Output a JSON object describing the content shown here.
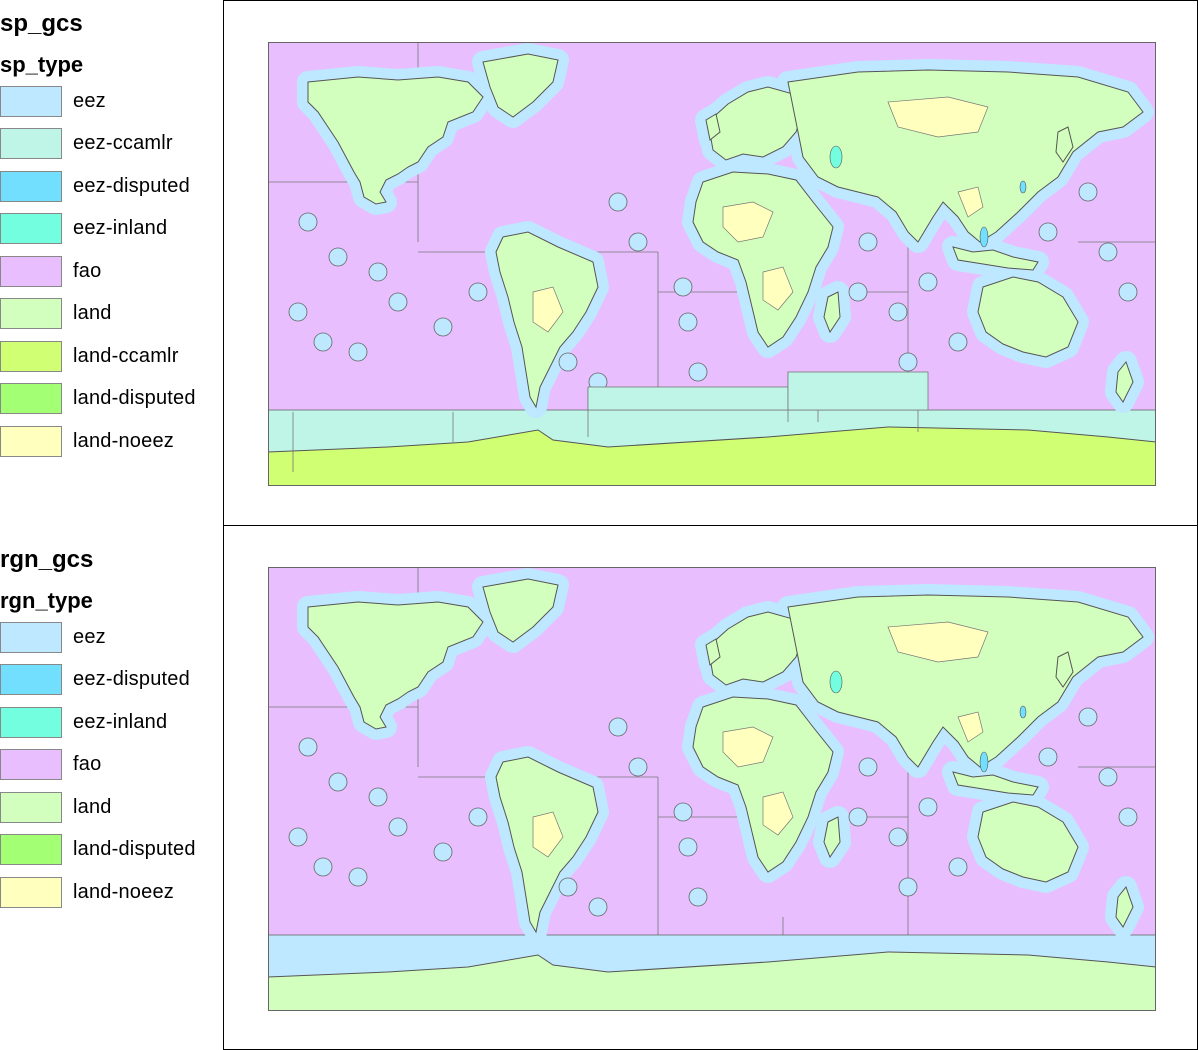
{
  "legends": [
    {
      "title": "sp_gcs",
      "subtitle": "sp_type",
      "items": [
        {
          "label": "eez",
          "color": "#bee8ff"
        },
        {
          "label": "eez-ccamlr",
          "color": "#bff5e7"
        },
        {
          "label": "eez-disputed",
          "color": "#73dfff"
        },
        {
          "label": "eez-inland",
          "color": "#73ffdf"
        },
        {
          "label": "fao",
          "color": "#e8beff"
        },
        {
          "label": "land",
          "color": "#d3ffbe"
        },
        {
          "label": "land-ccamlr",
          "color": "#d1ff73"
        },
        {
          "label": "land-disputed",
          "color": "#a3ff73"
        },
        {
          "label": "land-noeez",
          "color": "#ffffbe"
        }
      ]
    },
    {
      "title": "rgn_gcs",
      "subtitle": "rgn_type",
      "items": [
        {
          "label": "eez",
          "color": "#bee8ff"
        },
        {
          "label": "eez-disputed",
          "color": "#73dfff"
        },
        {
          "label": "eez-inland",
          "color": "#73ffdf"
        },
        {
          "label": "fao",
          "color": "#e8beff"
        },
        {
          "label": "land",
          "color": "#d3ffbe"
        },
        {
          "label": "land-disputed",
          "color": "#a3ff73"
        },
        {
          "label": "land-noeez",
          "color": "#ffffbe"
        }
      ]
    }
  ],
  "maps": [
    {
      "name": "sp_gcs",
      "antarctic_ocean": "eez-ccamlr",
      "antarctica": "land-ccamlr"
    },
    {
      "name": "rgn_gcs",
      "antarctic_ocean": "eez",
      "antarctica": "land"
    }
  ]
}
